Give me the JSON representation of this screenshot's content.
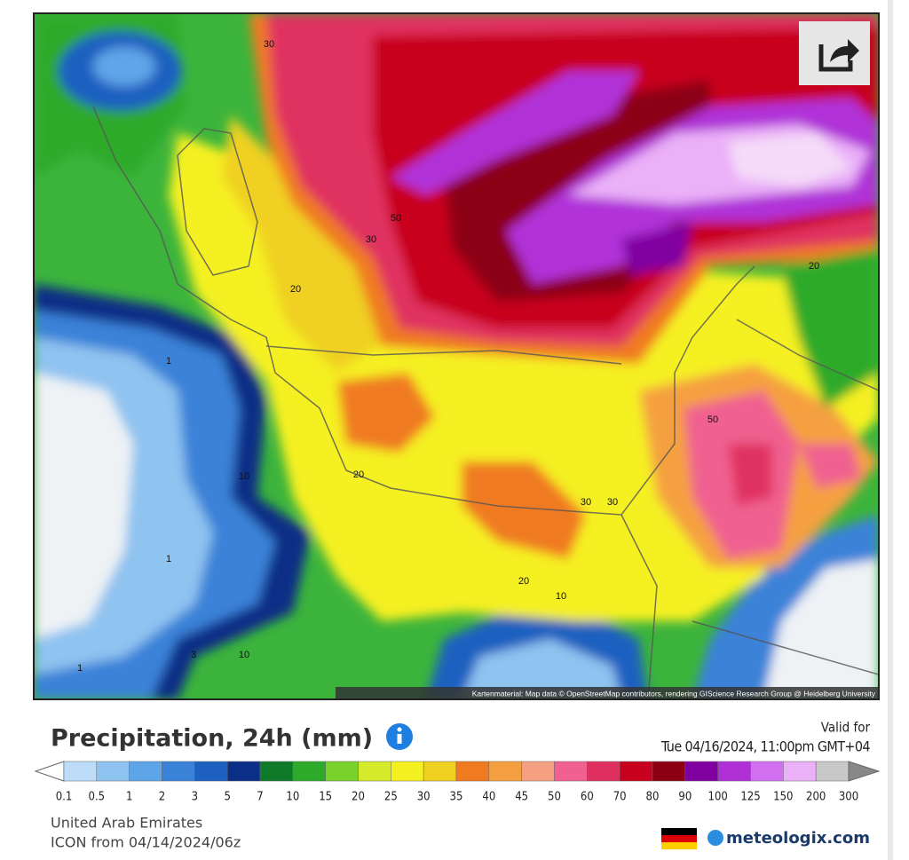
{
  "map": {
    "contour_labels": [
      "30",
      "50",
      "30",
      "20",
      "20",
      "1",
      "50",
      "10",
      "20",
      "30",
      "30",
      "1",
      "20",
      "10",
      "3",
      "10",
      "1"
    ],
    "attribution": "Kartenmaterial: Map data © OpenStreetMap contributors, rendering GIScience Research Group @ Heidelberg University"
  },
  "header": {
    "title": "Precipitation, 24h (mm)",
    "valid_label": "Valid for",
    "valid_time": "Tue 04/16/2024, 11:00pm GMT+04"
  },
  "legend": {
    "labels": [
      0.1,
      0.5,
      1,
      2,
      3,
      5,
      7,
      10,
      15,
      20,
      25,
      30,
      35,
      40,
      45,
      50,
      60,
      70,
      80,
      90,
      100,
      125,
      150,
      200,
      300
    ],
    "colors": [
      "#bcdcf7",
      "#8fc3f0",
      "#5ea5e8",
      "#3a82d8",
      "#1e60c0",
      "#0b2f86",
      "#0f7a2a",
      "#2eaa2a",
      "#7ad12a",
      "#d4ea2a",
      "#f5f020",
      "#f0d020",
      "#f07a20",
      "#f5a040",
      "#f5a080",
      "#f06090",
      "#e03060",
      "#c8001e",
      "#8c0014",
      "#8000a0",
      "#b030d8",
      "#d070f0",
      "#eab0f8",
      "#c8c8c8"
    ],
    "below_color": "#ffffff",
    "above_color": "#888888"
  },
  "footer": {
    "region": "United Arab Emirates",
    "model": "ICON from 04/14/2024/06z",
    "brand": "meteologix.com"
  }
}
